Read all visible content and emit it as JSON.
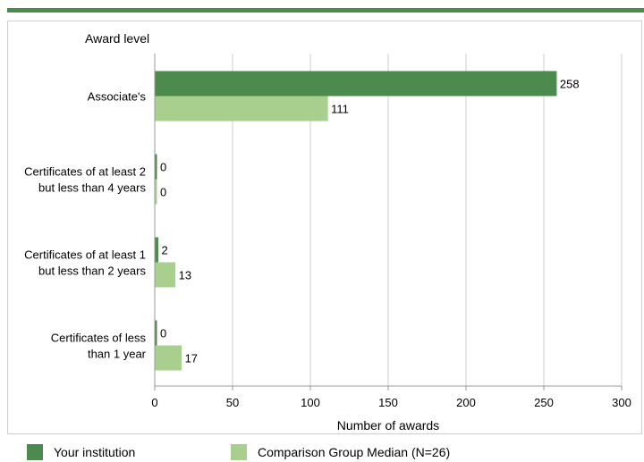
{
  "chart_data": {
    "type": "bar",
    "orientation": "horizontal",
    "title": "",
    "ylabel": "Award level",
    "xlabel": "Number of awards",
    "categories": [
      [
        "Associate's"
      ],
      [
        "Certificates of at least 2",
        "but less than 4 years"
      ],
      [
        "Certificates of at least 1",
        "but  less than 2 years"
      ],
      [
        "Certificates of less",
        "than 1 year"
      ]
    ],
    "series": [
      {
        "name": "Your institution",
        "color": "#4d8a4d",
        "values": [
          258,
          0,
          2,
          0
        ]
      },
      {
        "name": "Comparison Group Median (N=26)",
        "color": "#a9cf8e",
        "values": [
          111,
          0,
          13,
          17
        ]
      }
    ],
    "xlim": [
      0,
      300
    ],
    "xticks": [
      0,
      50,
      100,
      150,
      200,
      250,
      300
    ],
    "grid": true,
    "legend": "bottom"
  }
}
